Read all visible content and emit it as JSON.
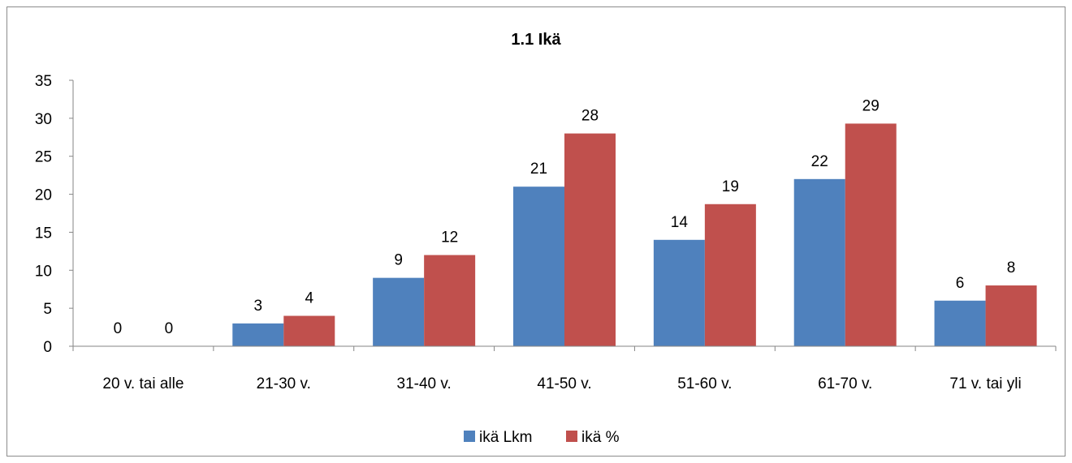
{
  "chart_data": {
    "type": "bar",
    "title": "1.1 Ikä",
    "xlabel": "",
    "ylabel": "",
    "categories": [
      "20 v. tai alle",
      "21-30 v.",
      "31-40 v.",
      "41-50 v.",
      "51-60 v.",
      "61-70 v.",
      "71 v. tai yli"
    ],
    "series": [
      {
        "name": "ikä Lkm",
        "color": "#4f81bd",
        "values": [
          0,
          3,
          9,
          21,
          14,
          22,
          6
        ],
        "labels": [
          "0",
          "3",
          "9",
          "21",
          "14",
          "22",
          "6"
        ]
      },
      {
        "name": "ikä %",
        "color": "#c0504d",
        "values": [
          0,
          4,
          12,
          28,
          18.7,
          29.3,
          8
        ],
        "labels": [
          "0",
          "4",
          "12",
          "28",
          "19",
          "29",
          "8"
        ]
      }
    ],
    "ylim": [
      0,
      35
    ],
    "yticks": [
      0,
      5,
      10,
      15,
      20,
      25,
      30,
      35
    ],
    "grid": false,
    "legend_position": "bottom"
  }
}
